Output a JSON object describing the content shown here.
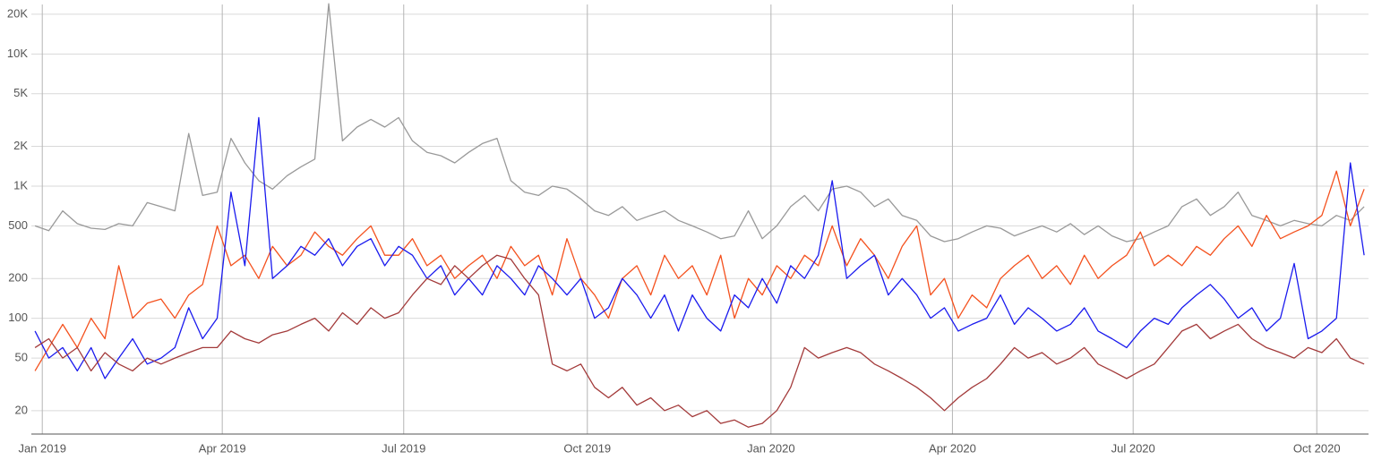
{
  "chart_data": {
    "type": "line",
    "yscale": "log",
    "grid": true,
    "xlim": [
      2018.985,
      2020.82
    ],
    "ylim": [
      13.3,
      23700
    ],
    "xticks": [
      {
        "value": 2019.0,
        "label": "Jan 2019"
      },
      {
        "value": 2019.247,
        "label": "Apr 2019"
      },
      {
        "value": 2019.496,
        "label": "Jul 2019"
      },
      {
        "value": 2019.748,
        "label": "Oct 2019"
      },
      {
        "value": 2020.0,
        "label": "Jan 2020"
      },
      {
        "value": 2020.249,
        "label": "Apr 2020"
      },
      {
        "value": 2020.497,
        "label": "Jul 2020"
      },
      {
        "value": 2020.749,
        "label": "Oct 2020"
      }
    ],
    "yticks": [
      20,
      50,
      100,
      200,
      500,
      {
        "value": 1000,
        "label": "1K"
      },
      {
        "value": 2000,
        "label": "2K"
      },
      {
        "value": 5000,
        "label": "5K"
      },
      {
        "value": 10000,
        "label": "10K"
      },
      {
        "value": 20000,
        "label": "20K"
      }
    ],
    "x": [
      2018.99,
      2019.009,
      2019.028,
      2019.048,
      2019.067,
      2019.086,
      2019.105,
      2019.124,
      2019.144,
      2019.163,
      2019.182,
      2019.201,
      2019.22,
      2019.24,
      2019.259,
      2019.278,
      2019.297,
      2019.316,
      2019.336,
      2019.355,
      2019.374,
      2019.393,
      2019.412,
      2019.432,
      2019.451,
      2019.47,
      2019.489,
      2019.508,
      2019.528,
      2019.547,
      2019.566,
      2019.585,
      2019.604,
      2019.624,
      2019.643,
      2019.662,
      2019.681,
      2019.7,
      2019.72,
      2019.739,
      2019.758,
      2019.777,
      2019.796,
      2019.816,
      2019.835,
      2019.854,
      2019.873,
      2019.892,
      2019.912,
      2019.931,
      2019.95,
      2019.969,
      2019.988,
      2020.008,
      2020.027,
      2020.046,
      2020.065,
      2020.084,
      2020.104,
      2020.123,
      2020.142,
      2020.161,
      2020.18,
      2020.2,
      2020.219,
      2020.238,
      2020.257,
      2020.276,
      2020.296,
      2020.315,
      2020.334,
      2020.353,
      2020.372,
      2020.392,
      2020.411,
      2020.43,
      2020.449,
      2020.468,
      2020.488,
      2020.507,
      2020.526,
      2020.545,
      2020.564,
      2020.584,
      2020.603,
      2020.622,
      2020.641,
      2020.66,
      2020.68,
      2020.699,
      2020.718,
      2020.737,
      2020.756,
      2020.776,
      2020.795,
      2020.814
    ],
    "series": [
      {
        "color": "#999999",
        "values": [
          500,
          460,
          650,
          520,
          480,
          470,
          520,
          500,
          750,
          700,
          650,
          2500,
          850,
          900,
          2300,
          1500,
          1100,
          950,
          1200,
          1400,
          1600,
          24000,
          2200,
          2800,
          3200,
          2800,
          3300,
          2200,
          1800,
          1700,
          1500,
          1800,
          2100,
          2300,
          1100,
          900,
          850,
          1000,
          950,
          800,
          650,
          600,
          700,
          550,
          600,
          650,
          550,
          500,
          450,
          400,
          420,
          650,
          400,
          500,
          700,
          850,
          650,
          950,
          1000,
          900,
          700,
          800,
          600,
          550,
          420,
          380,
          400,
          450,
          500,
          480,
          420,
          460,
          500,
          450,
          520,
          430,
          500,
          420,
          380,
          400,
          450,
          500,
          700,
          800,
          600,
          700,
          900,
          600,
          550,
          500,
          550,
          520,
          500,
          600,
          550,
          700
        ]
      },
      {
        "color": "#f4511e",
        "values": [
          40,
          60,
          90,
          60,
          100,
          70,
          250,
          100,
          130,
          140,
          100,
          150,
          180,
          500,
          250,
          300,
          200,
          350,
          250,
          300,
          450,
          350,
          300,
          400,
          500,
          300,
          300,
          400,
          250,
          300,
          200,
          250,
          300,
          200,
          350,
          250,
          300,
          150,
          400,
          200,
          150,
          100,
          200,
          250,
          150,
          300,
          200,
          250,
          150,
          300,
          100,
          200,
          150,
          250,
          200,
          300,
          250,
          500,
          250,
          400,
          300,
          200,
          350,
          500,
          150,
          200,
          100,
          150,
          120,
          200,
          250,
          300,
          200,
          250,
          180,
          300,
          200,
          250,
          300,
          450,
          250,
          300,
          250,
          350,
          300,
          400,
          500,
          350,
          600,
          400,
          450,
          500,
          600,
          1300,
          500,
          950
        ]
      },
      {
        "color": "#1a1aee",
        "values": [
          80,
          50,
          60,
          40,
          60,
          35,
          50,
          70,
          45,
          50,
          60,
          120,
          70,
          100,
          900,
          250,
          3300,
          200,
          250,
          350,
          300,
          400,
          250,
          350,
          400,
          250,
          350,
          300,
          200,
          250,
          150,
          200,
          150,
          250,
          200,
          150,
          250,
          200,
          150,
          200,
          100,
          120,
          200,
          150,
          100,
          150,
          80,
          150,
          100,
          80,
          150,
          120,
          200,
          130,
          250,
          200,
          300,
          1100,
          200,
          250,
          300,
          150,
          200,
          150,
          100,
          120,
          80,
          90,
          100,
          150,
          90,
          120,
          100,
          80,
          90,
          120,
          80,
          70,
          60,
          80,
          100,
          90,
          120,
          150,
          180,
          140,
          100,
          120,
          80,
          100,
          260,
          70,
          80,
          100,
          1500,
          300
        ]
      },
      {
        "color": "#a33a3a",
        "values": [
          60,
          70,
          50,
          60,
          40,
          55,
          45,
          40,
          50,
          45,
          50,
          55,
          60,
          60,
          80,
          70,
          65,
          75,
          80,
          90,
          100,
          80,
          110,
          90,
          120,
          100,
          110,
          150,
          200,
          180,
          250,
          200,
          250,
          300,
          280,
          200,
          150,
          45,
          40,
          45,
          30,
          25,
          30,
          22,
          25,
          20,
          22,
          18,
          20,
          16,
          17,
          15,
          16,
          20,
          30,
          60,
          50,
          55,
          60,
          55,
          45,
          40,
          35,
          30,
          25,
          20,
          25,
          30,
          35,
          45,
          60,
          50,
          55,
          45,
          50,
          60,
          45,
          40,
          35,
          40,
          45,
          60,
          80,
          90,
          70,
          80,
          90,
          70,
          60,
          55,
          50,
          60,
          55,
          70,
          50,
          45
        ]
      }
    ]
  }
}
